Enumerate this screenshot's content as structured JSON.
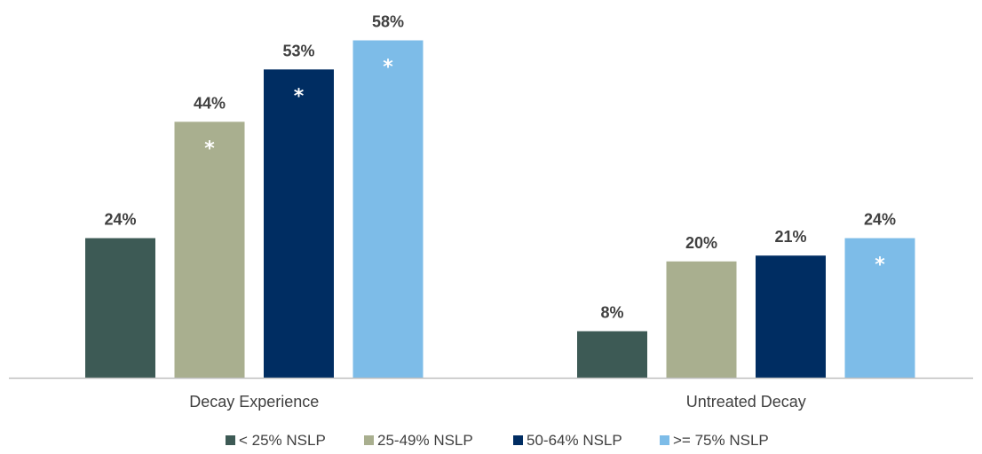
{
  "chart_data": {
    "type": "bar",
    "categories": [
      "Decay Experience",
      "Untreated Decay"
    ],
    "series": [
      {
        "name": "< 25% NSLP",
        "values": [
          24,
          8
        ],
        "labels": [
          "24%",
          "8%"
        ],
        "significant": [
          false,
          false
        ],
        "color": "#3d5a55"
      },
      {
        "name": "25-49% NSLP",
        "values": [
          44,
          20
        ],
        "labels": [
          "44%",
          "20%"
        ],
        "significant": [
          true,
          false
        ],
        "color": "#a9af8f"
      },
      {
        "name": "50-64% NSLP",
        "values": [
          53,
          21
        ],
        "labels": [
          "53%",
          "21%"
        ],
        "significant": [
          true,
          false
        ],
        "color": "#002d62"
      },
      {
        "name": ">= 75% NSLP",
        "values": [
          58,
          24
        ],
        "labels": [
          "58%",
          "24%"
        ],
        "significant": [
          true,
          true
        ],
        "color": "#7dbce8"
      }
    ],
    "significance_marker": "*",
    "ylim": [
      0,
      60
    ],
    "grid": false,
    "legend_position": "bottom"
  }
}
